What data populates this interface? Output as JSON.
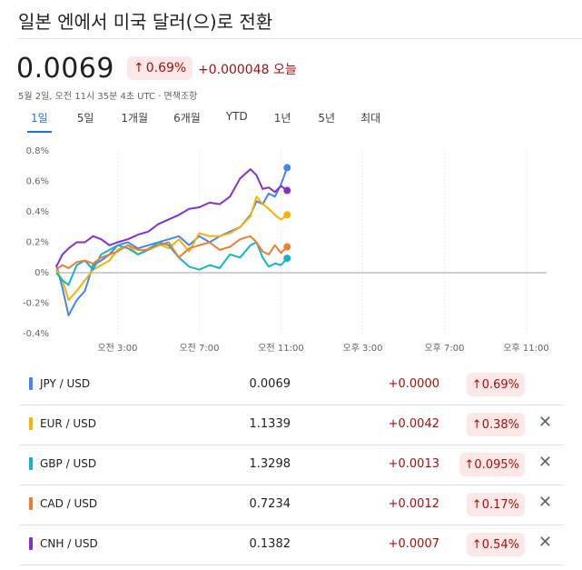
{
  "page": {
    "title": "일본 엔에서 미국 달러(으)로 전환",
    "price": "0.0069",
    "pct_change": "0.69%",
    "abs_change": "+0.000048 오늘",
    "timestamp": "5월 2일, 오전 11시 35분 4초 UTC · 면책조항"
  },
  "tabs": [
    {
      "label": "1일",
      "active": true
    },
    {
      "label": "5일"
    },
    {
      "label": "1개월"
    },
    {
      "label": "6개월"
    },
    {
      "label": "YTD"
    },
    {
      "label": "1년"
    },
    {
      "label": "5년"
    },
    {
      "label": "최대"
    }
  ],
  "chart_data": {
    "type": "line",
    "y_ticks": [
      "0.8%",
      "0.6%",
      "0.4%",
      "0.2%",
      "0%",
      "-0.2%",
      "-0.4%"
    ],
    "x_ticks": [
      "오전 3:00",
      "오전 7:00",
      "오전 11:00",
      "오후 3:00",
      "오후 7:00",
      "오후 11:00"
    ],
    "ylim": [
      -0.4,
      0.8
    ],
    "xlim": [
      0,
      24
    ],
    "grid": true,
    "series": [
      {
        "name": "JPY / USD",
        "color": "#4285f4",
        "x": [
          0,
          0.3,
          0.6,
          1.0,
          1.4,
          1.8,
          2.2,
          2.6,
          3.0,
          3.5,
          4.0,
          4.5,
          5.0,
          5.5,
          6.0,
          6.5,
          7.0,
          7.5,
          8.0,
          8.5,
          9.0,
          9.5,
          9.8,
          10.1,
          10.4,
          10.7,
          11.0,
          11.3
        ],
        "y": [
          0.05,
          -0.1,
          -0.28,
          -0.18,
          -0.12,
          0.05,
          0.08,
          0.12,
          0.18,
          0.2,
          0.16,
          0.18,
          0.2,
          0.22,
          0.24,
          0.18,
          0.24,
          0.2,
          0.24,
          0.27,
          0.3,
          0.38,
          0.47,
          0.45,
          0.52,
          0.5,
          0.58,
          0.69
        ]
      },
      {
        "name": "EUR / USD",
        "color": "#f4b400",
        "x": [
          0,
          0.3,
          0.6,
          1.0,
          1.4,
          1.8,
          2.2,
          2.6,
          3.0,
          3.5,
          4.0,
          4.5,
          5.0,
          5.5,
          6.0,
          6.5,
          7.0,
          7.5,
          8.0,
          8.5,
          9.0,
          9.5,
          9.8,
          10.1,
          10.4,
          10.7,
          11.0,
          11.3
        ],
        "y": [
          0.02,
          -0.05,
          -0.18,
          -0.12,
          -0.05,
          0.02,
          0.05,
          0.08,
          0.15,
          0.18,
          0.12,
          0.16,
          0.19,
          0.16,
          0.22,
          0.14,
          0.26,
          0.24,
          0.24,
          0.26,
          0.3,
          0.37,
          0.5,
          0.45,
          0.42,
          0.38,
          0.35,
          0.38
        ]
      },
      {
        "name": "GBP / USD",
        "color": "#12b5cb",
        "x": [
          0,
          0.3,
          0.6,
          1.0,
          1.4,
          1.8,
          2.2,
          2.6,
          3.0,
          3.5,
          4.0,
          4.5,
          5.0,
          5.5,
          6.0,
          6.5,
          7.0,
          7.5,
          8.0,
          8.5,
          9.0,
          9.5,
          9.8,
          10.1,
          10.4,
          10.7,
          11.0,
          11.3
        ],
        "y": [
          0.0,
          -0.05,
          -0.08,
          0.05,
          0.08,
          0.02,
          0.12,
          0.15,
          0.18,
          0.16,
          0.12,
          0.15,
          0.2,
          0.18,
          0.1,
          0.04,
          0.02,
          0.05,
          0.03,
          0.12,
          0.1,
          0.18,
          0.2,
          0.1,
          0.04,
          0.06,
          0.05,
          0.095
        ]
      },
      {
        "name": "CAD / USD",
        "color": "#ed7d31",
        "x": [
          0,
          0.3,
          0.6,
          1.0,
          1.4,
          1.8,
          2.2,
          2.6,
          3.0,
          3.5,
          4.0,
          4.5,
          5.0,
          5.5,
          6.0,
          6.5,
          7.0,
          7.5,
          8.0,
          8.5,
          9.0,
          9.5,
          9.8,
          10.1,
          10.4,
          10.7,
          11.0,
          11.3
        ],
        "y": [
          0.02,
          0.05,
          0.03,
          0.07,
          0.08,
          0.06,
          0.1,
          0.12,
          0.14,
          0.18,
          0.15,
          0.15,
          0.18,
          0.2,
          0.1,
          0.16,
          0.18,
          0.2,
          0.15,
          0.17,
          0.22,
          0.24,
          0.2,
          0.14,
          0.12,
          0.18,
          0.13,
          0.17
        ]
      },
      {
        "name": "CNH / USD",
        "color": "#8430ce",
        "x": [
          0,
          0.3,
          0.6,
          1.0,
          1.4,
          1.8,
          2.2,
          2.6,
          3.0,
          3.5,
          4.0,
          4.5,
          5.0,
          5.5,
          6.0,
          6.5,
          7.0,
          7.5,
          8.0,
          8.5,
          9.0,
          9.5,
          9.8,
          10.1,
          10.4,
          10.7,
          11.0,
          11.3
        ],
        "y": [
          0.04,
          0.12,
          0.16,
          0.2,
          0.2,
          0.24,
          0.22,
          0.18,
          0.2,
          0.22,
          0.25,
          0.27,
          0.32,
          0.35,
          0.38,
          0.42,
          0.43,
          0.46,
          0.45,
          0.5,
          0.62,
          0.68,
          0.64,
          0.55,
          0.56,
          0.53,
          0.57,
          0.54
        ]
      }
    ]
  },
  "table": {
    "rows": [
      {
        "pair": "JPY / USD",
        "color": "#4285f4",
        "rate": "0.0069",
        "diff": "+0.0000",
        "pct": "0.69%",
        "closable": false
      },
      {
        "pair": "EUR / USD",
        "color": "#f4b400",
        "rate": "1.1339",
        "diff": "+0.0042",
        "pct": "0.38%",
        "closable": true
      },
      {
        "pair": "GBP / USD",
        "color": "#12b5cb",
        "rate": "1.3298",
        "diff": "+0.0013",
        "pct": "0.095%",
        "closable": true
      },
      {
        "pair": "CAD / USD",
        "color": "#ed7d31",
        "rate": "0.7234",
        "diff": "+0.0012",
        "pct": "0.17%",
        "closable": true
      },
      {
        "pair": "CNH / USD",
        "color": "#8430ce",
        "rate": "0.1382",
        "diff": "+0.0007",
        "pct": "0.54%",
        "closable": true
      }
    ]
  },
  "icons": {
    "up_arrow": "up-arrow-icon",
    "close": "close-icon"
  }
}
